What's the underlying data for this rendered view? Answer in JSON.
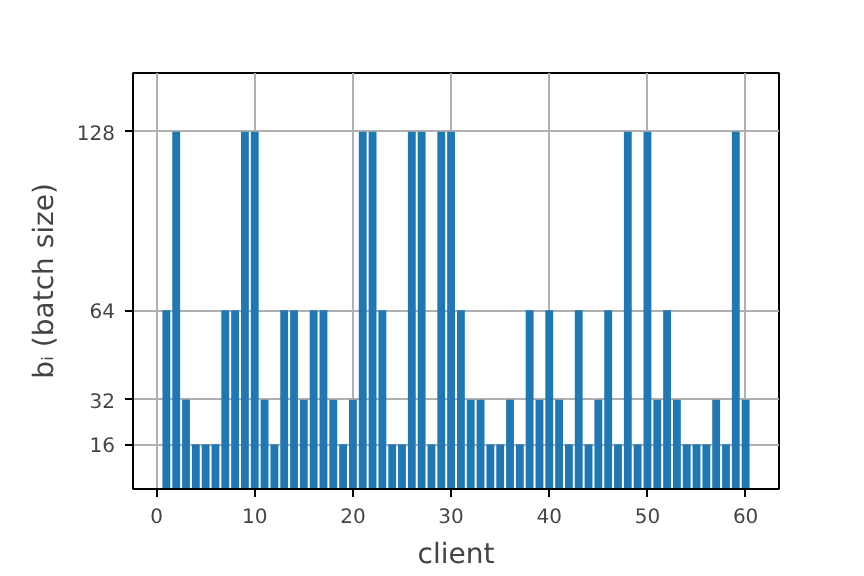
{
  "chart_data": {
    "type": "bar",
    "xlabel": "client",
    "ylabel": "bᵢ (batch size)",
    "x": [
      1,
      2,
      3,
      4,
      5,
      6,
      7,
      8,
      9,
      10,
      11,
      12,
      13,
      14,
      15,
      16,
      17,
      18,
      19,
      20,
      21,
      22,
      23,
      24,
      25,
      26,
      27,
      28,
      29,
      30,
      31,
      32,
      33,
      34,
      35,
      36,
      37,
      38,
      39,
      40,
      41,
      42,
      43,
      44,
      45,
      46,
      47,
      48,
      49,
      50,
      51,
      52,
      53,
      54,
      55,
      56,
      57,
      58,
      59,
      60
    ],
    "values": [
      64,
      128,
      32,
      16,
      16,
      16,
      64,
      64,
      128,
      128,
      32,
      16,
      64,
      64,
      32,
      64,
      64,
      32,
      16,
      32,
      128,
      128,
      64,
      16,
      16,
      128,
      128,
      16,
      128,
      128,
      64,
      32,
      32,
      16,
      16,
      32,
      16,
      64,
      32,
      64,
      32,
      16,
      64,
      16,
      32,
      64,
      16,
      128,
      16,
      128,
      32,
      64,
      32,
      16,
      16,
      16,
      32,
      16,
      128,
      32
    ],
    "color": "#1f77b4",
    "xlim": [
      -2.4,
      63.4
    ],
    "xticks": [
      0,
      10,
      20,
      30,
      40,
      50,
      60
    ],
    "ylim": [
      0,
      149
    ],
    "yticks": [
      16,
      32,
      64,
      128
    ],
    "grid": true
  }
}
